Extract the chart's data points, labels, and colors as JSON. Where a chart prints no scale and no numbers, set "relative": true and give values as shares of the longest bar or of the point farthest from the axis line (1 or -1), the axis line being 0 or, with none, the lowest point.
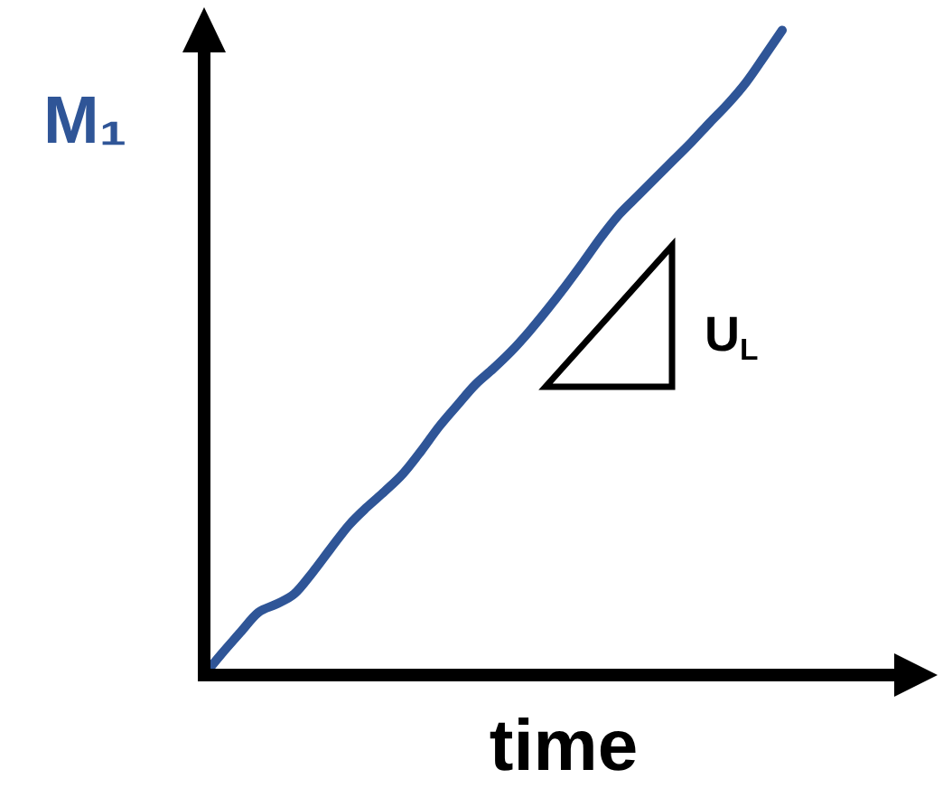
{
  "chart_data": {
    "type": "line",
    "xlabel": "time",
    "ylabel": "M₁",
    "relative": true,
    "categories": [
      null,
      null,
      null,
      null,
      null,
      null,
      null,
      null,
      null,
      null,
      null,
      null,
      null,
      null,
      null,
      null,
      null,
      null,
      null,
      null,
      null,
      null,
      null,
      null,
      null,
      null,
      null,
      null,
      null,
      null,
      null,
      null,
      null
    ],
    "series": [
      {
        "color": "#2f5597",
        "values": [
          0,
          0.034,
          0.066,
          0.097,
          0.11,
          0.126,
          0.159,
          0.196,
          0.232,
          0.26,
          0.285,
          0.312,
          0.347,
          0.385,
          0.418,
          0.45,
          0.475,
          0.502,
          0.533,
          0.567,
          0.603,
          0.641,
          0.68,
          0.715,
          0.743,
          0.771,
          0.799,
          0.827,
          0.857,
          0.886,
          0.919,
          0.959,
          1
        ]
      }
    ],
    "annotations": [
      "U$_{L}$"
    ]
  }
}
